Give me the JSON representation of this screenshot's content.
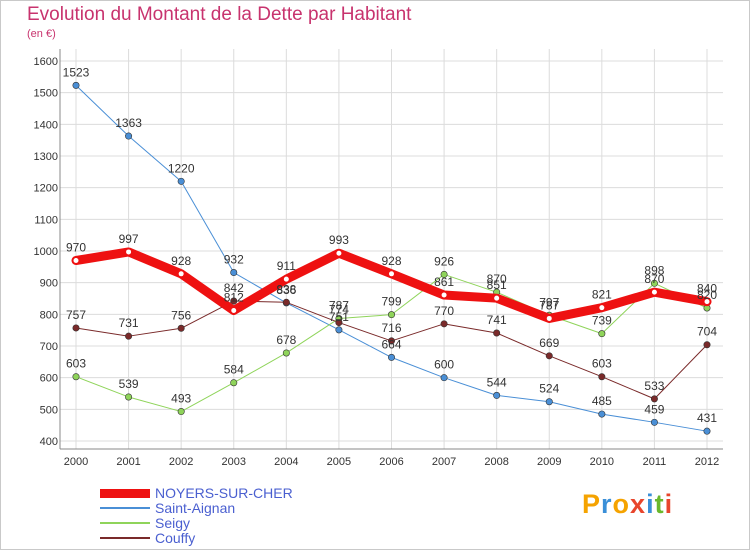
{
  "title": "Evolution du Montant de la Dette par Habitant",
  "subtitle": "(en €)",
  "logo": {
    "text": "Proxiti",
    "letters": [
      "P",
      "r",
      "o",
      "x",
      "i",
      "t",
      "i"
    ],
    "colors": [
      "#f5a300",
      "#3a8fd8",
      "#f5a300",
      "#e8452c",
      "#3a8fd8",
      "#6ab82c",
      "#e8452c"
    ]
  },
  "chart_data": {
    "type": "line",
    "x": [
      2000,
      2001,
      2002,
      2003,
      2004,
      2005,
      2006,
      2007,
      2008,
      2009,
      2010,
      2011,
      2012
    ],
    "ylim": [
      400,
      1600
    ],
    "yticks": [
      400,
      500,
      600,
      700,
      800,
      900,
      1000,
      1100,
      1200,
      1300,
      1400,
      1500,
      1600
    ],
    "grid": true,
    "series": [
      {
        "name": "Saint-Aignan",
        "color": "#4a8fd6",
        "width": 1,
        "values": [
          1523,
          1363,
          1220,
          932,
          836,
          751,
          664,
          600,
          544,
          524,
          485,
          459,
          431
        ]
      },
      {
        "name": "Seigy",
        "color": "#8fd45a",
        "width": 1,
        "values": [
          603,
          539,
          493,
          584,
          678,
          787,
          799,
          926,
          870,
          797,
          739,
          898,
          820
        ]
      },
      {
        "name": "Couffy",
        "color": "#7a2a2a",
        "width": 1,
        "values": [
          757,
          731,
          756,
          842,
          838,
          774,
          716,
          770,
          741,
          669,
          603,
          533,
          704
        ]
      },
      {
        "name": "NOYERS-SUR-CHER",
        "color": "#ee1111",
        "width": 9,
        "values": [
          970,
          997,
          928,
          812,
          911,
          993,
          928,
          861,
          851,
          787,
          821,
          870,
          840
        ]
      }
    ],
    "legend": [
      "NOYERS-SUR-CHER",
      "Saint-Aignan",
      "Seigy",
      "Couffy"
    ]
  }
}
